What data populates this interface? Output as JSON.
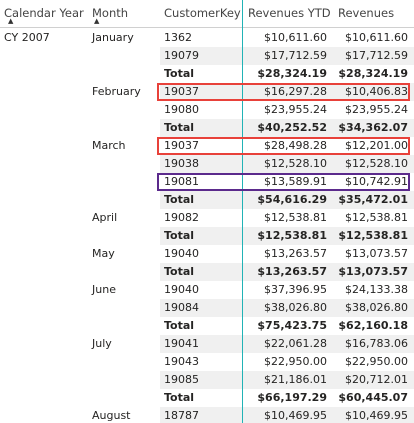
{
  "columns": {
    "year": "Calendar Year",
    "month": "Month",
    "customer": "CustomerKey",
    "ytd": "Revenues YTD",
    "revenues": "Revenues"
  },
  "year_label": "CY 2007",
  "groups": [
    {
      "month": "January",
      "rows": [
        {
          "cust": "1362",
          "ytd": "$10,611.60",
          "rev": "$10,611.60"
        },
        {
          "cust": "19079",
          "ytd": "$17,712.59",
          "rev": "$17,712.59"
        },
        {
          "cust": "Total",
          "ytd": "$28,324.19",
          "rev": "$28,324.19",
          "total": true
        }
      ]
    },
    {
      "month": "February",
      "rows": [
        {
          "cust": "19037",
          "ytd": "$16,297.28",
          "rev": "$10,406.83",
          "hl": "red"
        },
        {
          "cust": "19080",
          "ytd": "$23,955.24",
          "rev": "$23,955.24"
        },
        {
          "cust": "Total",
          "ytd": "$40,252.52",
          "rev": "$34,362.07",
          "total": true
        }
      ]
    },
    {
      "month": "March",
      "rows": [
        {
          "cust": "19037",
          "ytd": "$28,498.28",
          "rev": "$12,201.00",
          "hl": "red"
        },
        {
          "cust": "19038",
          "ytd": "$12,528.10",
          "rev": "$12,528.10"
        },
        {
          "cust": "19081",
          "ytd": "$13,589.91",
          "rev": "$10,742.91",
          "hl": "purple"
        },
        {
          "cust": "Total",
          "ytd": "$54,616.29",
          "rev": "$35,472.01",
          "total": true
        }
      ]
    },
    {
      "month": "April",
      "rows": [
        {
          "cust": "19082",
          "ytd": "$12,538.81",
          "rev": "$12,538.81"
        },
        {
          "cust": "Total",
          "ytd": "$12,538.81",
          "rev": "$12,538.81",
          "total": true
        }
      ]
    },
    {
      "month": "May",
      "rows": [
        {
          "cust": "19040",
          "ytd": "$13,263.57",
          "rev": "$13,073.57"
        },
        {
          "cust": "Total",
          "ytd": "$13,263.57",
          "rev": "$13,073.57",
          "total": true
        }
      ]
    },
    {
      "month": "June",
      "rows": [
        {
          "cust": "19040",
          "ytd": "$37,396.95",
          "rev": "$24,133.38"
        },
        {
          "cust": "19084",
          "ytd": "$38,026.80",
          "rev": "$38,026.80"
        },
        {
          "cust": "Total",
          "ytd": "$75,423.75",
          "rev": "$62,160.18",
          "total": true
        }
      ]
    },
    {
      "month": "July",
      "rows": [
        {
          "cust": "19041",
          "ytd": "$22,061.28",
          "rev": "$16,783.06"
        },
        {
          "cust": "19043",
          "ytd": "$22,950.00",
          "rev": "$22,950.00"
        },
        {
          "cust": "19085",
          "ytd": "$21,186.01",
          "rev": "$20,712.01"
        },
        {
          "cust": "Total",
          "ytd": "$66,197.29",
          "rev": "$60,445.07",
          "total": true
        }
      ]
    },
    {
      "month": "August",
      "rows": [
        {
          "cust": "18787",
          "ytd": "$10,469.95",
          "rev": "$10,469.95"
        }
      ]
    }
  ]
}
